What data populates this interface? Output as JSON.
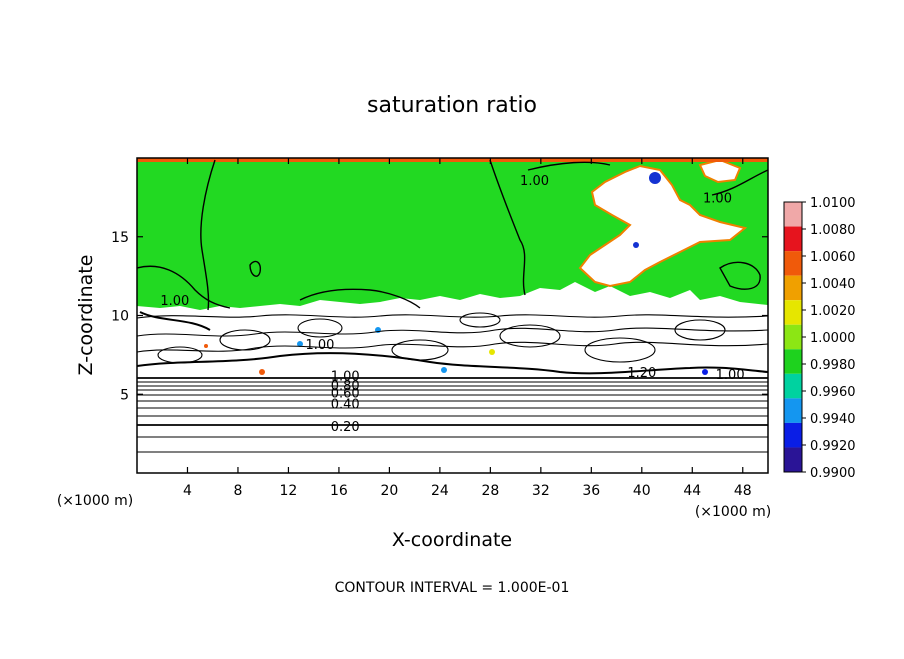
{
  "chart_data": {
    "type": "contour",
    "title": "saturation ratio",
    "xlabel": "X-coordinate",
    "ylabel": "Z-coordinate",
    "x_unit": "(×1000 m)",
    "z_unit": "(×1000 m)",
    "xlim": [
      0,
      50
    ],
    "ylim": [
      0,
      20
    ],
    "x_ticks": [
      4,
      8,
      12,
      16,
      20,
      24,
      28,
      32,
      36,
      40,
      44,
      48
    ],
    "y_ticks": [
      5,
      10,
      15
    ],
    "footer": "CONTOUR INTERVAL = 1.000E-01",
    "contour_interval": 0.1,
    "contour_labels": [
      {
        "text": "1.00",
        "x": 31.5,
        "z": 18.6
      },
      {
        "text": "1.00",
        "x": 46.0,
        "z": 17.5
      },
      {
        "text": "1.00",
        "x": 3.0,
        "z": 11.0
      },
      {
        "text": "1.00",
        "x": 14.5,
        "z": 8.2
      },
      {
        "text": "1.20",
        "x": 40.0,
        "z": 6.4
      },
      {
        "text": "1.00",
        "x": 47.0,
        "z": 6.3
      },
      {
        "text": "1.00",
        "x": 16.5,
        "z": 6.2
      },
      {
        "text": "0.80",
        "x": 16.5,
        "z": 5.6
      },
      {
        "text": "0.60",
        "x": 16.5,
        "z": 5.1
      },
      {
        "text": "0.40",
        "x": 16.5,
        "z": 4.4
      },
      {
        "text": "0.20",
        "x": 16.5,
        "z": 3.0
      }
    ],
    "colorbar": {
      "min": 0.99,
      "max": 1.01,
      "levels": [
        "1.0100",
        "1.0080",
        "1.0060",
        "1.0040",
        "1.0020",
        "1.0000",
        "0.9980",
        "0.9960",
        "0.9940",
        "0.9920",
        "0.9900"
      ],
      "bands": [
        "#f0a8a8",
        "#e6141e",
        "#f05a0a",
        "#f0a000",
        "#e6e600",
        "#8ce614",
        "#1ed21e",
        "#00d2a0",
        "#1496f0",
        "#0a1ee6",
        "#2a1496"
      ]
    },
    "colors": {
      "saturated_region": "#22d922",
      "subsaturated_region": "#ffffff",
      "contour_line": "#000000"
    }
  }
}
